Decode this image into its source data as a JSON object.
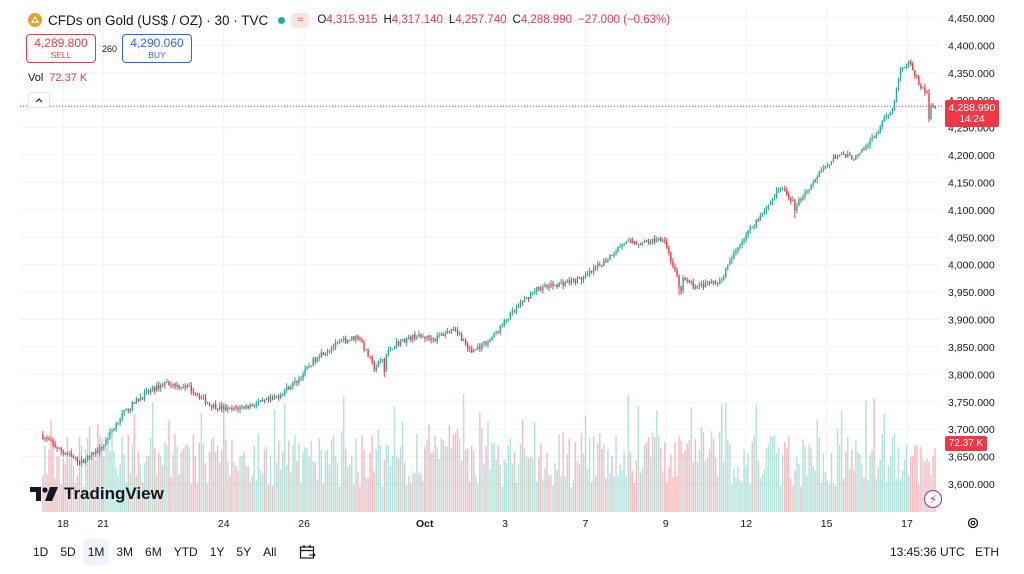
{
  "header": {
    "symbol": "CFDs on Gold (US$ / OZ) · 30 · TVC",
    "badge": "≈",
    "ohlc": {
      "o_label": "O",
      "o": "4,315.915",
      "h_label": "H",
      "h": "4,317.140",
      "l_label": "L",
      "l": "4,257.740",
      "c_label": "C",
      "c": "4,288.990",
      "change": "−27.000 (−0.63%)"
    }
  },
  "trade": {
    "sell_price": "4,289.800",
    "sell_label": "SELL",
    "spread": "260",
    "buy_price": "4,290.060",
    "buy_label": "BUY"
  },
  "volume": {
    "label": "Vol",
    "value": "72.37 K"
  },
  "last_price_tag": {
    "price": "4,288.990",
    "countdown": "14:24"
  },
  "volume_tag": "72.37 K",
  "logo_text": "TradingView",
  "bottom": {
    "ranges": [
      "1D",
      "5D",
      "1M",
      "3M",
      "6M",
      "YTD",
      "1Y",
      "5Y",
      "All"
    ],
    "active_range": "1M",
    "time": "13:45:36 UTC",
    "timezone_label": "ETH"
  },
  "colors": {
    "up": "#22ab94",
    "down": "#f23645",
    "accent": "#2962ff",
    "grid": "#f0f3fa"
  },
  "chart_data": {
    "type": "candlestick",
    "title": "CFDs on Gold (US$ / OZ) · 30 · TVC",
    "timeframe": "30",
    "ylim": [
      3575,
      4460
    ],
    "y_ticks": [
      "3,600.000",
      "3,650.000",
      "3,700.000",
      "3,750.000",
      "3,800.000",
      "3,850.000",
      "3,900.000",
      "3,950.000",
      "4,000.000",
      "4,050.000",
      "4,100.000",
      "4,150.000",
      "4,200.000",
      "4,250.000",
      "4,300.000",
      "4,350.000",
      "4,400.000",
      "4,450.000"
    ],
    "y_tick_values": [
      3600,
      3650,
      3700,
      3750,
      3800,
      3850,
      3900,
      3950,
      4000,
      4050,
      4100,
      4150,
      4200,
      4250,
      4300,
      4350,
      4400,
      4450
    ],
    "x_ticks": [
      {
        "label": "18",
        "day": 1,
        "bold": false
      },
      {
        "label": "21",
        "day": 2,
        "bold": false
      },
      {
        "label": "24",
        "day": 5,
        "bold": false
      },
      {
        "label": "26",
        "day": 7,
        "bold": false
      },
      {
        "label": "Oct",
        "day": 10,
        "bold": true
      },
      {
        "label": "3",
        "day": 12,
        "bold": false
      },
      {
        "label": "7",
        "day": 14,
        "bold": false
      },
      {
        "label": "9",
        "day": 16,
        "bold": false
      },
      {
        "label": "12",
        "day": 18,
        "bold": false
      },
      {
        "label": "15",
        "day": 20,
        "bold": false
      },
      {
        "label": "17",
        "day": 22,
        "bold": false
      }
    ],
    "days_span": [
      0.5,
      22.75
    ],
    "price_path": [
      [
        0.5,
        3690
      ],
      [
        1.0,
        3660
      ],
      [
        1.5,
        3640
      ],
      [
        2.0,
        3665
      ],
      [
        2.5,
        3725
      ],
      [
        3.0,
        3760
      ],
      [
        3.6,
        3785
      ],
      [
        4.2,
        3775
      ],
      [
        4.7,
        3745
      ],
      [
        5.2,
        3735
      ],
      [
        5.8,
        3745
      ],
      [
        6.3,
        3755
      ],
      [
        6.9,
        3790
      ],
      [
        7.4,
        3835
      ],
      [
        8.0,
        3860
      ],
      [
        8.4,
        3870
      ],
      [
        8.8,
        3810
      ],
      [
        9.3,
        3855
      ],
      [
        9.8,
        3870
      ],
      [
        10.3,
        3865
      ],
      [
        10.8,
        3885
      ],
      [
        11.2,
        3840
      ],
      [
        11.7,
        3865
      ],
      [
        12.2,
        3910
      ],
      [
        12.8,
        3955
      ],
      [
        13.4,
        3965
      ],
      [
        14.0,
        3975
      ],
      [
        14.5,
        4005
      ],
      [
        15.0,
        4040
      ],
      [
        15.5,
        4040
      ],
      [
        16.0,
        4050
      ],
      [
        16.3,
        3980
      ],
      [
        16.8,
        3960
      ],
      [
        17.4,
        3970
      ],
      [
        17.9,
        4040
      ],
      [
        18.4,
        4090
      ],
      [
        18.9,
        4140
      ],
      [
        19.3,
        4110
      ],
      [
        19.8,
        4160
      ],
      [
        20.3,
        4200
      ],
      [
        20.8,
        4195
      ],
      [
        21.3,
        4240
      ],
      [
        21.7,
        4290
      ],
      [
        21.9,
        4360
      ],
      [
        22.1,
        4370
      ],
      [
        22.35,
        4330
      ],
      [
        22.55,
        4310
      ],
      [
        22.7,
        4289
      ]
    ],
    "dips": [
      [
        9.0,
        3795
      ],
      [
        16.35,
        3945
      ],
      [
        19.2,
        4085
      ],
      [
        22.55,
        4260
      ]
    ],
    "volume": {
      "last": "72.37 K",
      "max_relative": 1.0
    }
  }
}
